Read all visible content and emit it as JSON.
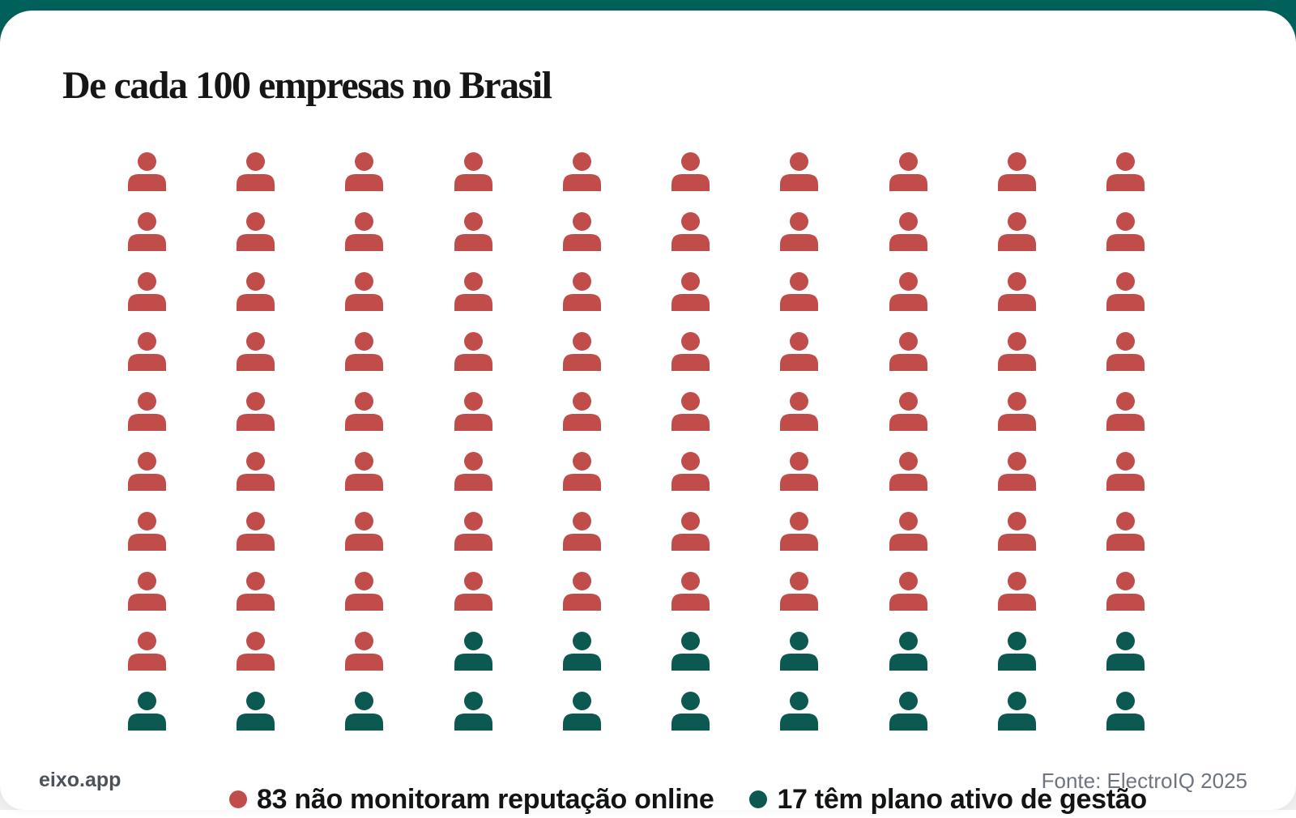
{
  "page": {
    "brand": "eixo.app",
    "source": "Fonte: ElectroIQ 2025"
  },
  "chart_data": {
    "type": "pictogram",
    "title": "De cada 100 empresas no Brasil",
    "total_icons": 100,
    "grid": {
      "rows": 10,
      "cols": 10,
      "fill_order": "row-major"
    },
    "icon": "person-icon",
    "series": [
      {
        "name": "83 não monitoram reputação online",
        "value": 83,
        "color": "#C14D4B"
      },
      {
        "name": "17 têm plano ativo de gestão",
        "value": 17,
        "color": "#0B5951"
      }
    ],
    "legend_position": "bottom"
  },
  "colors": {
    "red": "#C14D4B",
    "teal": "#0B5951",
    "accent_bar": "#00615B",
    "page_bg": "#EDEFF0",
    "card_bg": "#FFFFFF",
    "title": "#161616",
    "legend_text": "#121416",
    "muted_text": "#6E757E",
    "brand_text": "#4C525A"
  }
}
